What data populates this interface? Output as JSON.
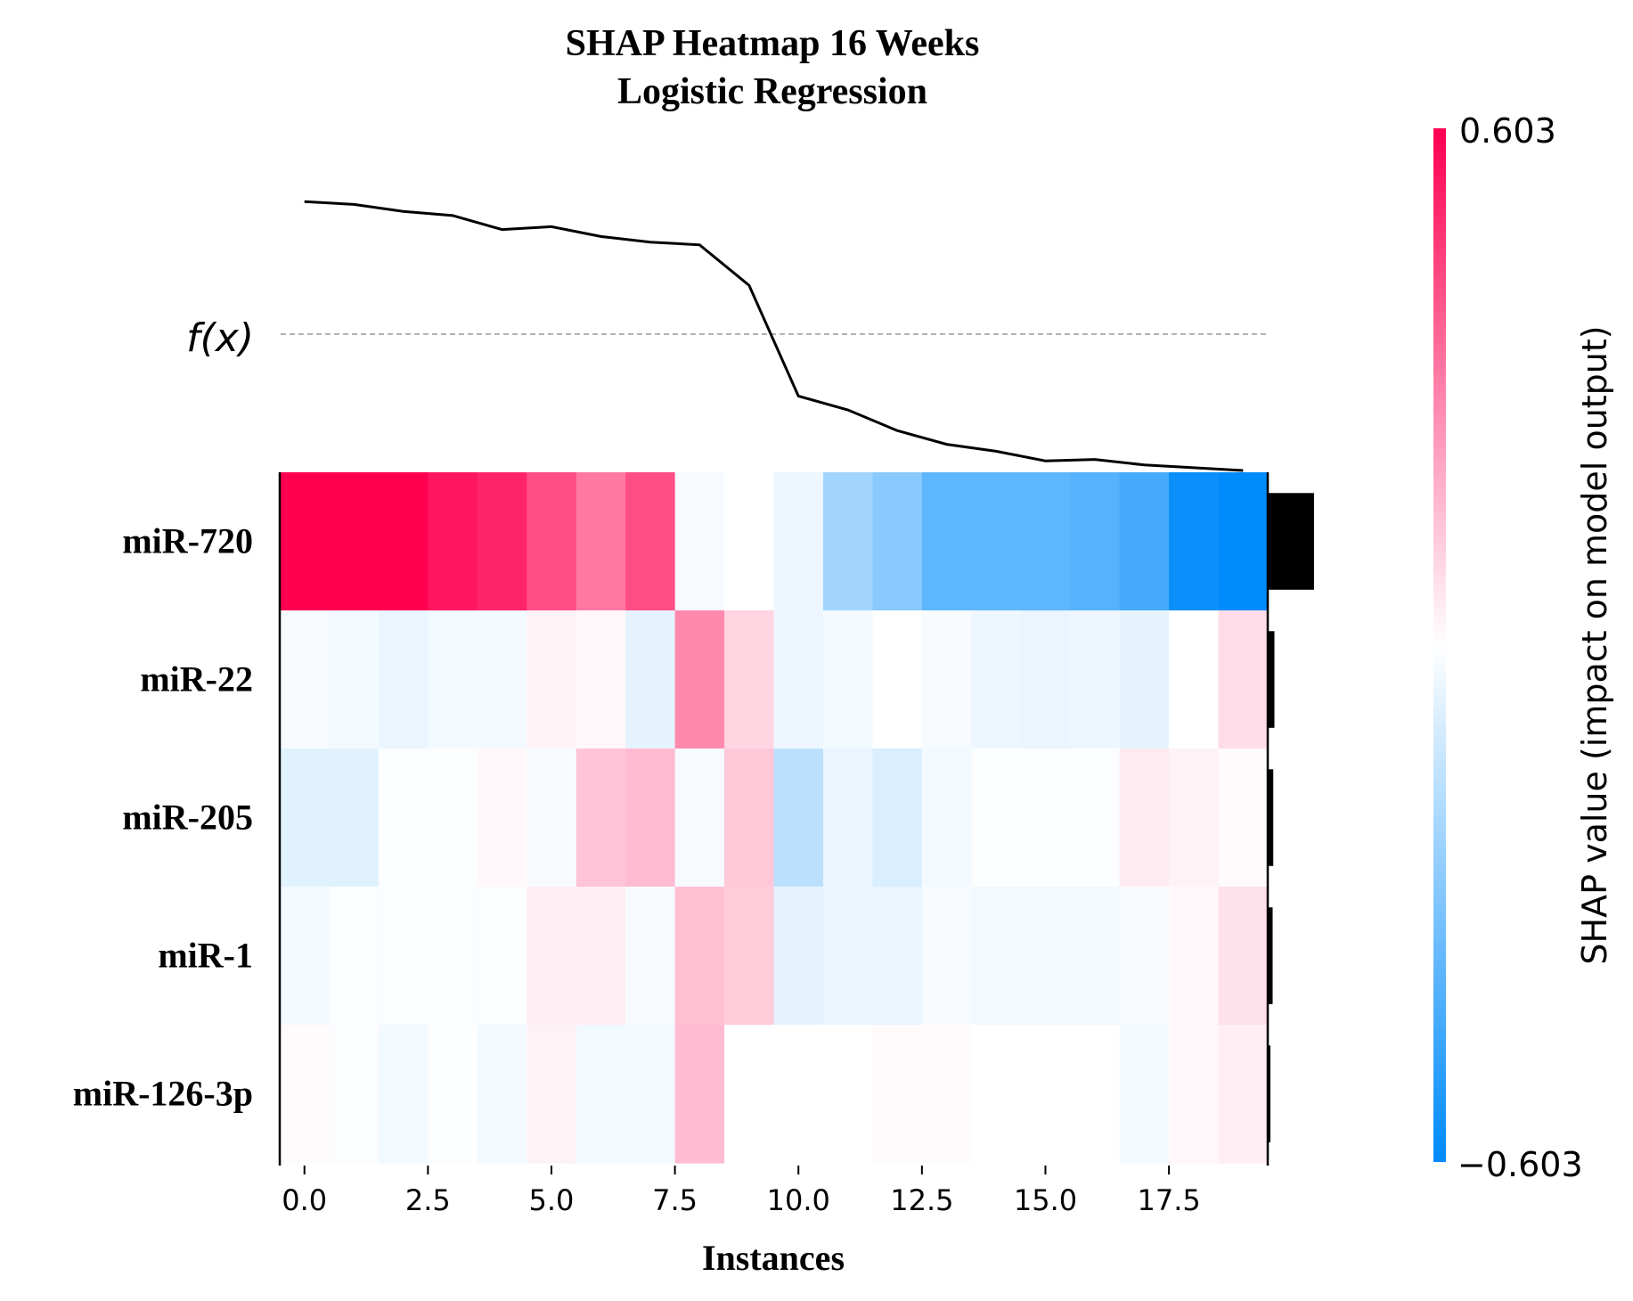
{
  "chart_data": {
    "type": "heatmap",
    "title": "SHAP Heatmap 16 Weeks",
    "subtitle": "Logistic Regression",
    "xlabel": "Instances",
    "x_ticks": [
      0.0,
      2.5,
      5.0,
      7.5,
      10.0,
      12.5,
      15.0,
      17.5
    ],
    "x_tick_labels": [
      "0.0",
      "2.5",
      "5.0",
      "7.5",
      "10.0",
      "12.5",
      "15.0",
      "17.5"
    ],
    "xlim": [
      -0.5,
      19.5
    ],
    "fx_label": "f(x)",
    "features": [
      "miR-720",
      "miR-22",
      "miR-205",
      "miR-1",
      "miR-126-3p"
    ],
    "instances": [
      0,
      1,
      2,
      3,
      4,
      5,
      6,
      7,
      8,
      9,
      10,
      11,
      12,
      13,
      14,
      15,
      16,
      17,
      18,
      19
    ],
    "shap_values": [
      [
        0.603,
        0.603,
        0.603,
        0.55,
        0.52,
        0.42,
        0.32,
        0.42,
        -0.02,
        0.0,
        -0.04,
        -0.22,
        -0.28,
        -0.38,
        -0.38,
        -0.38,
        -0.4,
        -0.44,
        -0.58,
        -0.603
      ],
      [
        -0.02,
        -0.03,
        -0.05,
        -0.03,
        -0.03,
        0.03,
        0.02,
        -0.06,
        0.28,
        0.1,
        -0.04,
        -0.03,
        0.0,
        -0.02,
        -0.04,
        -0.05,
        -0.04,
        -0.06,
        0.0,
        0.08
      ],
      [
        -0.07,
        -0.07,
        -0.01,
        -0.01,
        0.02,
        -0.02,
        0.14,
        0.16,
        -0.02,
        0.13,
        -0.16,
        -0.05,
        -0.09,
        -0.03,
        -0.01,
        -0.01,
        -0.01,
        0.05,
        0.03,
        0.01
      ],
      [
        -0.03,
        -0.01,
        -0.01,
        -0.01,
        -0.01,
        0.04,
        0.04,
        -0.02,
        0.15,
        0.12,
        -0.06,
        -0.05,
        -0.05,
        -0.02,
        -0.03,
        -0.03,
        -0.03,
        -0.02,
        0.02,
        0.07
      ],
      [
        0.01,
        -0.01,
        -0.03,
        -0.01,
        -0.03,
        0.03,
        -0.03,
        -0.03,
        0.16,
        0.0,
        0.0,
        0.0,
        0.01,
        0.01,
        0.0,
        0.0,
        0.0,
        -0.03,
        0.02,
        0.04
      ]
    ],
    "fx_values": [
      0.95,
      0.93,
      0.88,
      0.85,
      0.75,
      0.77,
      0.7,
      0.66,
      0.64,
      0.35,
      -0.45,
      -0.55,
      -0.7,
      -0.8,
      -0.85,
      -0.92,
      -0.91,
      -0.95,
      -0.97,
      -0.99
    ],
    "fx_baseline": 0.0,
    "feature_importance": [
      0.38,
      0.055,
      0.045,
      0.04,
      0.02
    ],
    "colorbar": {
      "label": "SHAP value (impact on model output)",
      "max_label": "0.603",
      "min_label": "−0.603",
      "vmin": -0.603,
      "vmax": 0.603
    },
    "colors": {
      "positive": "#ff0051",
      "negative": "#008bfb",
      "line": "#000000",
      "baseline": "#999999"
    }
  }
}
